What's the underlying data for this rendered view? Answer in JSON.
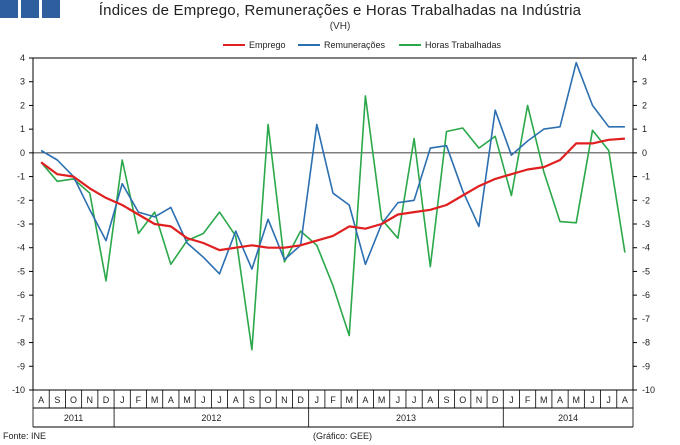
{
  "chart_data": {
    "type": "line",
    "title": "Índices de Emprego, Remunerações e Horas Trabalhadas na Indústria",
    "subtitle": "(VH)",
    "ylim": [
      -10,
      4
    ],
    "y_ticks": [
      4,
      3,
      2,
      1,
      0,
      -1,
      -2,
      -3,
      -4,
      -5,
      -6,
      -7,
      -8,
      -9,
      -10
    ],
    "x_month_labels": [
      "A",
      "S",
      "O",
      "N",
      "D",
      "J",
      "F",
      "M",
      "A",
      "M",
      "J",
      "J",
      "A",
      "S",
      "O",
      "N",
      "D",
      "J",
      "F",
      "M",
      "A",
      "M",
      "J",
      "J",
      "A",
      "S",
      "O",
      "N",
      "D",
      "J",
      "F",
      "M",
      "A",
      "M",
      "J",
      "J",
      "A"
    ],
    "year_groups": [
      {
        "label": "2011",
        "start": 0,
        "end": 4
      },
      {
        "label": "2012",
        "start": 5,
        "end": 16
      },
      {
        "label": "2013",
        "start": 17,
        "end": 28
      },
      {
        "label": "2014",
        "start": 29,
        "end": 36
      }
    ],
    "series": [
      {
        "name": "Emprego",
        "color": "#e02020",
        "values": [
          -0.4,
          -0.9,
          -1.0,
          -1.5,
          -1.9,
          -2.2,
          -2.6,
          -3.0,
          -3.1,
          -3.6,
          -3.8,
          -4.1,
          -4.0,
          -3.9,
          -4.0,
          -4.0,
          -3.9,
          -3.7,
          -3.5,
          -3.1,
          -3.2,
          -3.0,
          -2.6,
          -2.5,
          -2.4,
          -2.2,
          -1.8,
          -1.4,
          -1.1,
          -0.9,
          -0.7,
          -0.6,
          -0.3,
          0.4,
          0.4,
          0.55,
          0.6
        ]
      },
      {
        "name": "Remunerações",
        "color": "#2c6fb0",
        "values": [
          0.1,
          -0.3,
          -1.0,
          -2.4,
          -3.7,
          -1.3,
          -2.5,
          -2.7,
          -2.3,
          -3.8,
          -4.4,
          -5.1,
          -3.3,
          -4.9,
          -2.8,
          -4.5,
          -3.9,
          1.2,
          -1.7,
          -2.2,
          -4.7,
          -3.0,
          -2.1,
          -2.0,
          0.2,
          0.3,
          -1.6,
          -3.1,
          1.8,
          -0.1,
          0.5,
          1.0,
          1.1,
          3.8,
          2.0,
          1.1,
          1.1
        ]
      },
      {
        "name": "Horas Trabalhadas",
        "color": "#2ba84a",
        "values": [
          -0.4,
          -1.2,
          -1.1,
          -1.7,
          -5.4,
          -0.3,
          -3.4,
          -2.5,
          -4.7,
          -3.7,
          -3.4,
          -2.5,
          -3.5,
          -8.3,
          1.2,
          -4.6,
          -3.3,
          -3.9,
          -5.6,
          -7.7,
          2.4,
          -2.8,
          -3.6,
          0.6,
          -4.8,
          0.9,
          1.05,
          0.2,
          0.7,
          -1.8,
          2.0,
          -0.8,
          -2.9,
          -2.95,
          0.95,
          0.1,
          -4.2
        ]
      }
    ],
    "legend_position": "top-center",
    "grid": false
  },
  "logo": {
    "color": "#2e5e9e"
  },
  "footer": {
    "source": "Fonte: INE",
    "credit": "(Gráfico: GEE)"
  }
}
